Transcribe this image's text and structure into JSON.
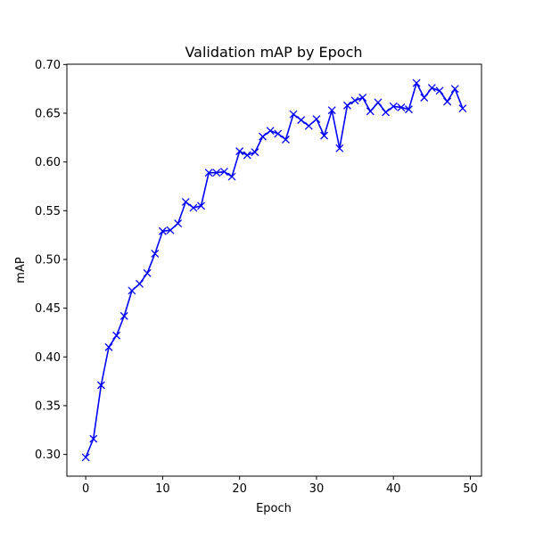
{
  "chart_data": {
    "type": "line",
    "title": "Validation mAP by Epoch",
    "xlabel": "Epoch",
    "ylabel": "mAP",
    "xlim": [
      -2.45,
      51.45
    ],
    "ylim": [
      0.2777,
      0.7003
    ],
    "xticks": [
      0,
      10,
      20,
      30,
      40,
      50
    ],
    "yticks": [
      0.3,
      0.35,
      0.4,
      0.45,
      0.5,
      0.55,
      0.6,
      0.65,
      0.7
    ],
    "xtick_labels": [
      "0",
      "10",
      "20",
      "30",
      "40",
      "50"
    ],
    "ytick_labels": [
      "0.30",
      "0.35",
      "0.40",
      "0.45",
      "0.50",
      "0.55",
      "0.60",
      "0.65",
      "0.70"
    ],
    "grid": false,
    "legend": false,
    "series": [
      {
        "color": "#0000ff",
        "marker": "x",
        "x": [
          0,
          1,
          2,
          3,
          4,
          5,
          6,
          7,
          8,
          9,
          10,
          11,
          12,
          13,
          14,
          15,
          16,
          17,
          18,
          19,
          20,
          21,
          22,
          23,
          24,
          25,
          26,
          27,
          28,
          29,
          30,
          31,
          32,
          33,
          34,
          35,
          36,
          37,
          38,
          39,
          40,
          41,
          42,
          43,
          44,
          45,
          46,
          47,
          48,
          49
        ],
        "y": [
          0.297,
          0.316,
          0.371,
          0.41,
          0.422,
          0.442,
          0.468,
          0.475,
          0.486,
          0.506,
          0.529,
          0.53,
          0.537,
          0.559,
          0.553,
          0.555,
          0.589,
          0.589,
          0.59,
          0.585,
          0.611,
          0.607,
          0.61,
          0.626,
          0.632,
          0.629,
          0.623,
          0.649,
          0.643,
          0.637,
          0.644,
          0.627,
          0.653,
          0.614,
          0.658,
          0.663,
          0.666,
          0.652,
          0.661,
          0.651,
          0.657,
          0.656,
          0.654,
          0.681,
          0.666,
          0.676,
          0.673,
          0.662,
          0.675,
          0.655
        ]
      }
    ]
  }
}
